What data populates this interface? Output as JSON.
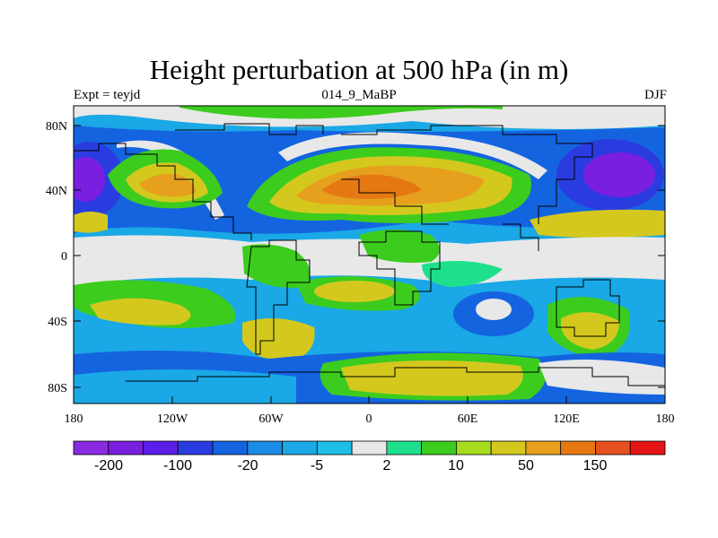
{
  "title": "Height perturbation at 500 hPa (in m)",
  "subtitle_left": "Expt = teyjd",
  "subtitle_center": "014_9_MaBP",
  "subtitle_right": "DJF",
  "x_ticks": [
    "180",
    "120W",
    "60W",
    "0",
    "60E",
    "120E",
    "180"
  ],
  "y_ticks": [
    "80N",
    "40N",
    "0",
    "40S",
    "80S"
  ],
  "colorbar": {
    "colors": [
      "#8a2be2",
      "#7a1fe0",
      "#5a1ee6",
      "#2a3ce0",
      "#1464e0",
      "#1a8ce6",
      "#1aa8e6",
      "#1ebee6",
      "#e8e8e8",
      "#1ee08c",
      "#3ccc1e",
      "#a8dc1e",
      "#d4c81e",
      "#e6a01e",
      "#e67814",
      "#e6501e",
      "#e61414"
    ],
    "labels": [
      "-200",
      "-100",
      "-20",
      "-5",
      "2",
      "10",
      "50",
      "150"
    ]
  },
  "legend_colors": {
    "strong_negative": "#6a1fd8",
    "negative": "#1464e0",
    "weak_negative": "#1aa8e6",
    "neutral": "#e8e8e8",
    "weak_positive": "#3ccc1e",
    "positive": "#d4c81e",
    "strong_positive": "#e6501e"
  }
}
